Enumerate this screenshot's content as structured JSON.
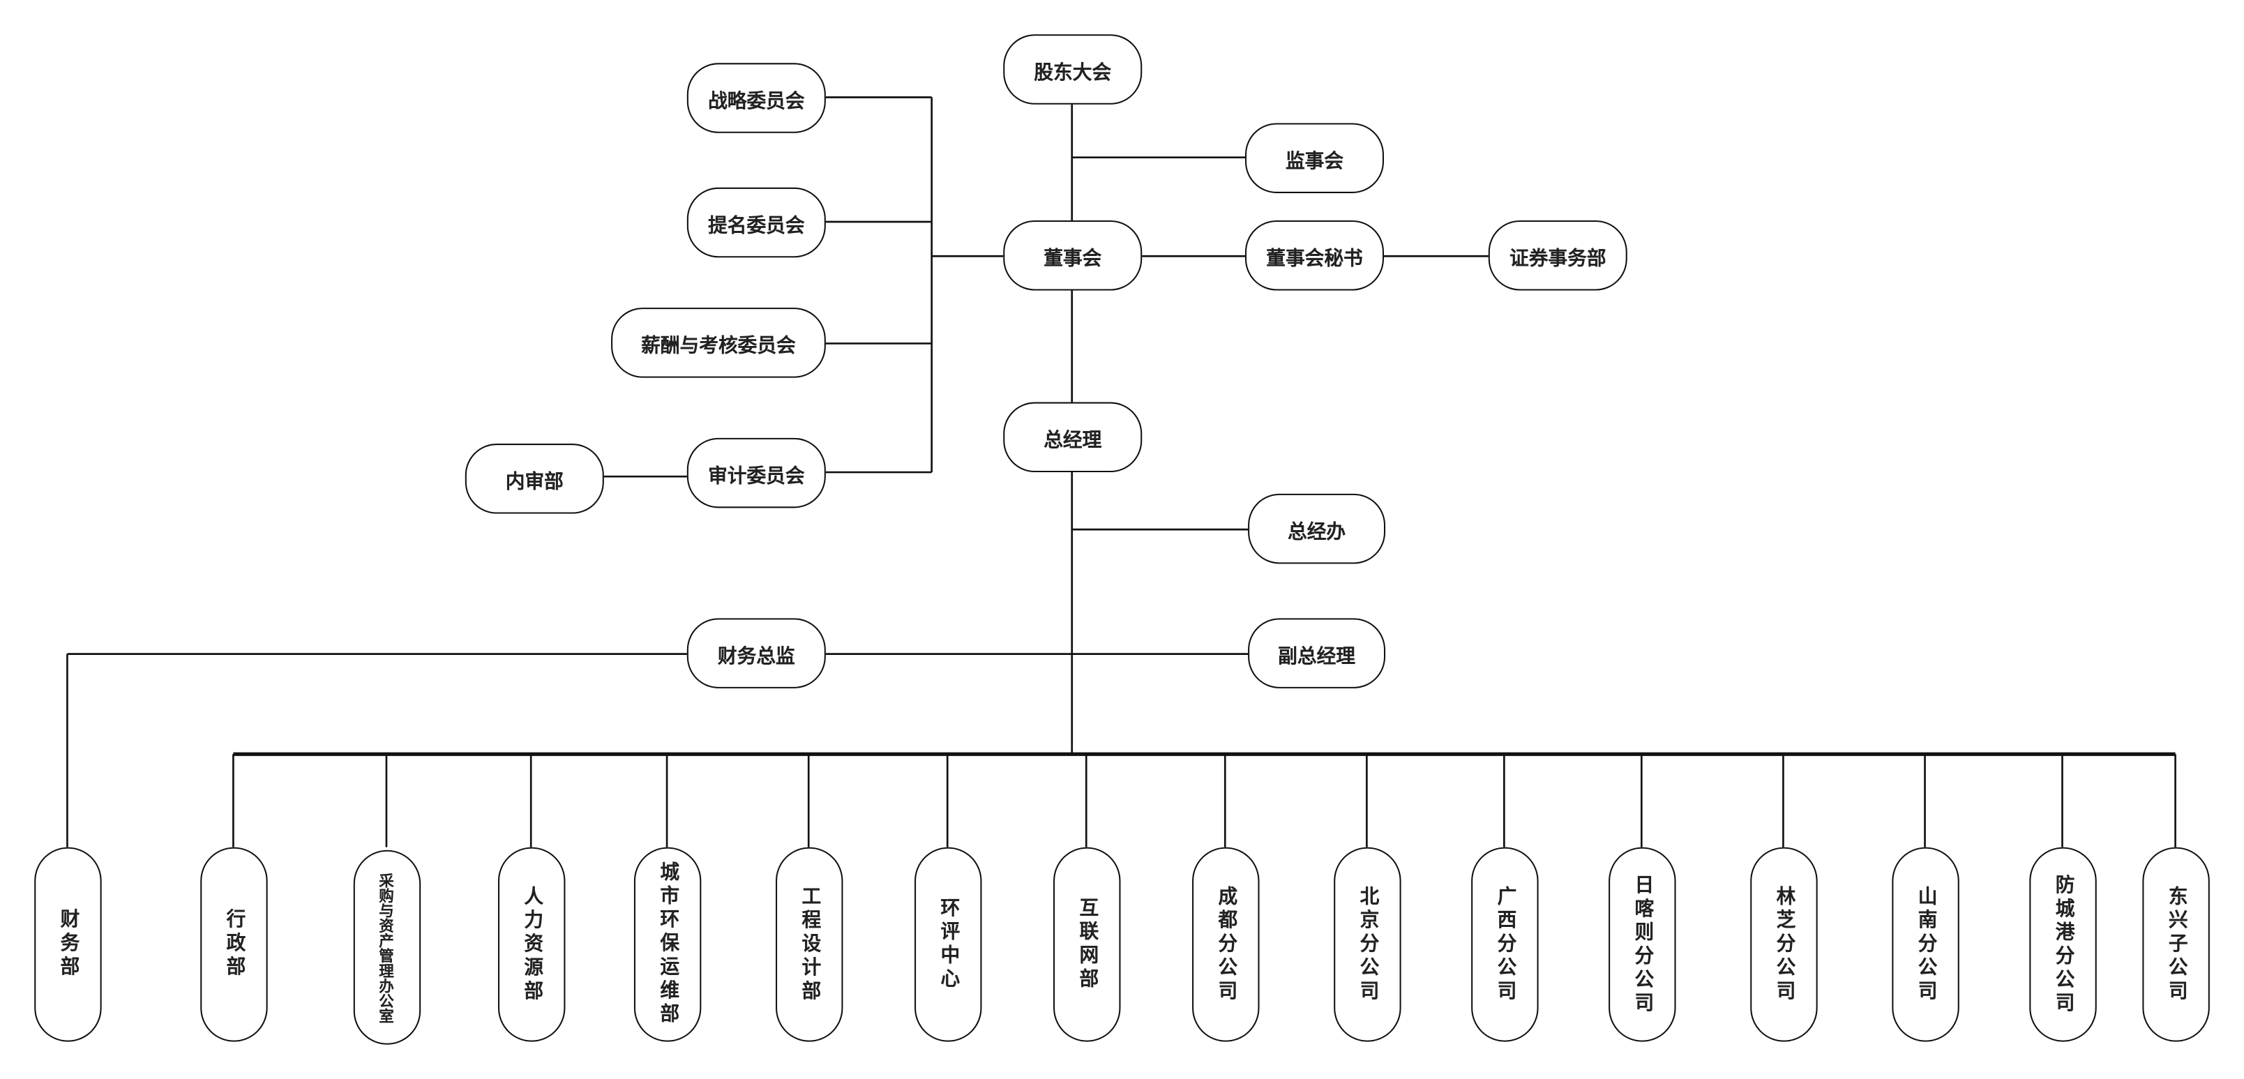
{
  "top_nodes": {
    "shareholders": "股东大会",
    "supervisors": "监事会",
    "board": "董事会",
    "board_secretary": "董事会秘书",
    "securities": "证券事务部",
    "strategy": "战略委员会",
    "nomination": "提名委员会",
    "compensation": "薪酬与考核委员会",
    "audit": "审计委员会",
    "internal_audit": "内审部",
    "gm": "总经理",
    "gm_office": "总经办",
    "deputy_gm": "副总经理",
    "cfo": "财务总监"
  },
  "departments": [
    "财务部",
    "行政部",
    "采购与资产管理办公室",
    "人力资源部",
    "城市环保运维部",
    "工程设计部",
    "环评中心",
    "互联网部",
    "成都分公司",
    "北京分公司",
    "广西分公司",
    "日喀则分公司",
    "林芝分公司",
    "山南分公司",
    "防城港分公司",
    "东兴子公司"
  ]
}
